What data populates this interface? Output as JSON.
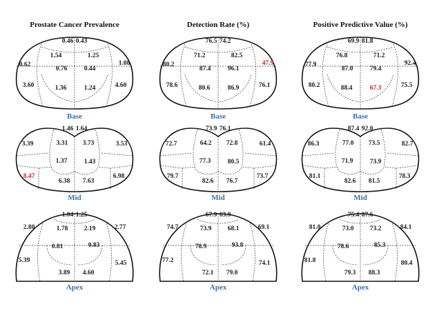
{
  "colors": {
    "title": "#111111",
    "zone_label": "#3f6ea8",
    "value": "#1a1a1a",
    "highlight": "#c0282a"
  },
  "columns": [
    {
      "title": "Prostate Cancer Prevalence",
      "base": {
        "label": "Base",
        "values": [
          "0.46",
          "0.43",
          "1.54",
          "1.25",
          "0.62",
          "1.08",
          "0.76",
          "0.44",
          "3.60",
          "1.36",
          "1.24",
          "4.60"
        ],
        "highlight": []
      },
      "mid": {
        "label": "Mid",
        "values": [
          "1.46",
          "1.64",
          "3.39",
          "3.31",
          "3.73",
          "3.53",
          "1.37",
          "1.43",
          "8.47",
          "6.38",
          "7.63",
          "6.98"
        ],
        "highlight": [
          8
        ]
      },
      "apex": {
        "label": "Apex",
        "values": [
          "1.04",
          "1.25",
          "2.80",
          "1.78",
          "2.19",
          "2.77",
          "0.81",
          "0.83",
          "5.39",
          "3.89",
          "4.60",
          "5.45"
        ],
        "highlight": []
      }
    },
    {
      "title": "Detection Rate (%)",
      "base": {
        "label": "Base",
        "values": [
          "76.5",
          "74.2",
          "71.2",
          "82.5",
          "80.2",
          "47.9",
          "87.4",
          "96.1",
          "78.6",
          "80.6",
          "86.9",
          "76.1"
        ],
        "highlight": [
          5
        ]
      },
      "mid": {
        "label": "Mid",
        "values": [
          "73.9",
          "76.1",
          "72.7",
          "64.2",
          "72.8",
          "61.4",
          "77.3",
          "80.5",
          "79.7",
          "82.6",
          "76.7",
          "73.7"
        ],
        "highlight": []
      },
      "apex": {
        "label": "Apex",
        "values": [
          "67.9",
          "63.9",
          "74.7",
          "73.9",
          "68.1",
          "69.1",
          "78.9",
          "93.8",
          "77.2",
          "72.1",
          "79.0",
          "74.1"
        ],
        "highlight": []
      }
    },
    {
      "title": "Positive Predictive Value (%)",
      "base": {
        "label": "Base",
        "values": [
          "69.9",
          "81.8",
          "76.8",
          "71.2",
          "77.9",
          "92.4",
          "87.0",
          "79.4",
          "80.2",
          "88.4",
          "67.3",
          "75.5"
        ],
        "highlight": [
          10
        ]
      },
      "mid": {
        "label": "Mid",
        "values": [
          "87.4",
          "92.0",
          "86.3",
          "77.0",
          "73.5",
          "82.7",
          "71.9",
          "73.9",
          "81.1",
          "82.6",
          "81.5",
          "78.3"
        ],
        "highlight": []
      },
      "apex": {
        "label": "Apex",
        "values": [
          "75.4",
          "87.6",
          "81.0",
          "73.0",
          "73.2",
          "84.1",
          "78.6",
          "85.3",
          "81.8",
          "79.3",
          "88.3",
          "80.4"
        ],
        "highlight": []
      }
    }
  ]
}
